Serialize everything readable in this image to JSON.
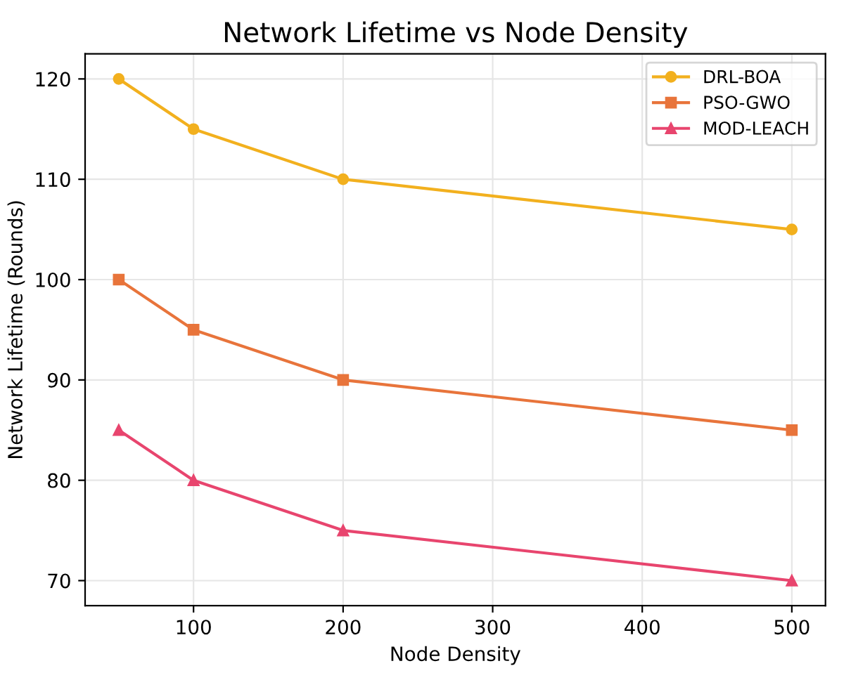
{
  "chart_data": {
    "type": "line",
    "title": "Network Lifetime vs Node Density",
    "xlabel": "Node Density",
    "ylabel": "Network Lifetime (Rounds)",
    "x": [
      50,
      100,
      200,
      500
    ],
    "series": [
      {
        "name": "DRL-BOA",
        "color": "#f2b01e",
        "marker": "circle",
        "values": [
          120,
          115,
          110,
          105
        ]
      },
      {
        "name": "PSO-GWO",
        "color": "#e8743b",
        "marker": "square",
        "values": [
          100,
          95,
          90,
          85
        ]
      },
      {
        "name": "MOD-LEACH",
        "color": "#e8456e",
        "marker": "triangle",
        "values": [
          85,
          80,
          75,
          70
        ]
      }
    ],
    "xlim": [
      27.5,
      522.5
    ],
    "ylim": [
      67.5,
      122.5
    ],
    "xticks": [
      100,
      200,
      300,
      400,
      500
    ],
    "yticks": [
      70,
      80,
      90,
      100,
      110,
      120
    ],
    "grid": true,
    "legend": "top right",
    "line_style": "solid"
  }
}
